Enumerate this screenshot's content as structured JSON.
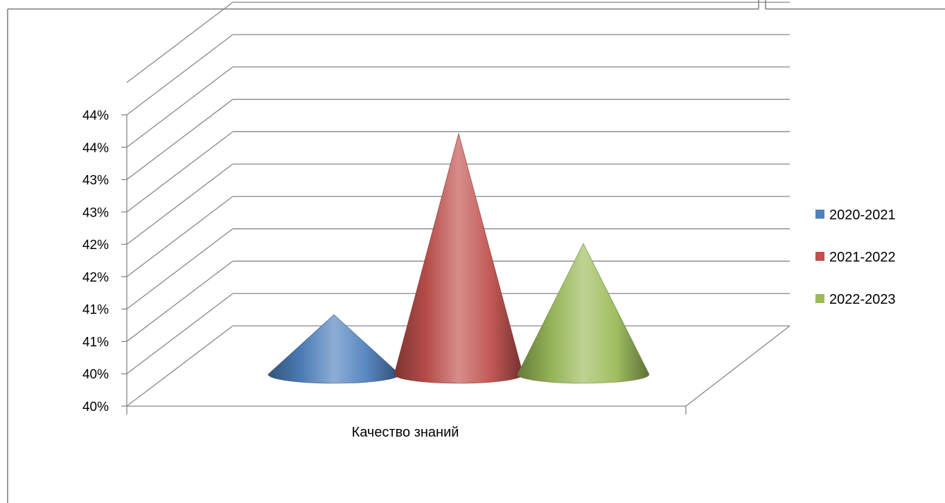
{
  "chart_data": {
    "type": "bar",
    "bar_shape": "cone-3d",
    "categories": [
      "Качество знаний"
    ],
    "series": [
      {
        "name": "2020-2021",
        "values": [
          41.2
        ],
        "color": "#4F81BD"
      },
      {
        "name": "2021-2022",
        "values": [
          44.0
        ],
        "color": "#C0504D"
      },
      {
        "name": "2022-2023",
        "values": [
          42.3
        ],
        "color": "#9BBB59"
      }
    ],
    "y_ticks": [
      "40%",
      "40%",
      "41%",
      "41%",
      "42%",
      "42%",
      "43%",
      "43%",
      "44%",
      "44%"
    ],
    "ylim": [
      40,
      44.5
    ],
    "grid": true,
    "legend_position": "right"
  }
}
